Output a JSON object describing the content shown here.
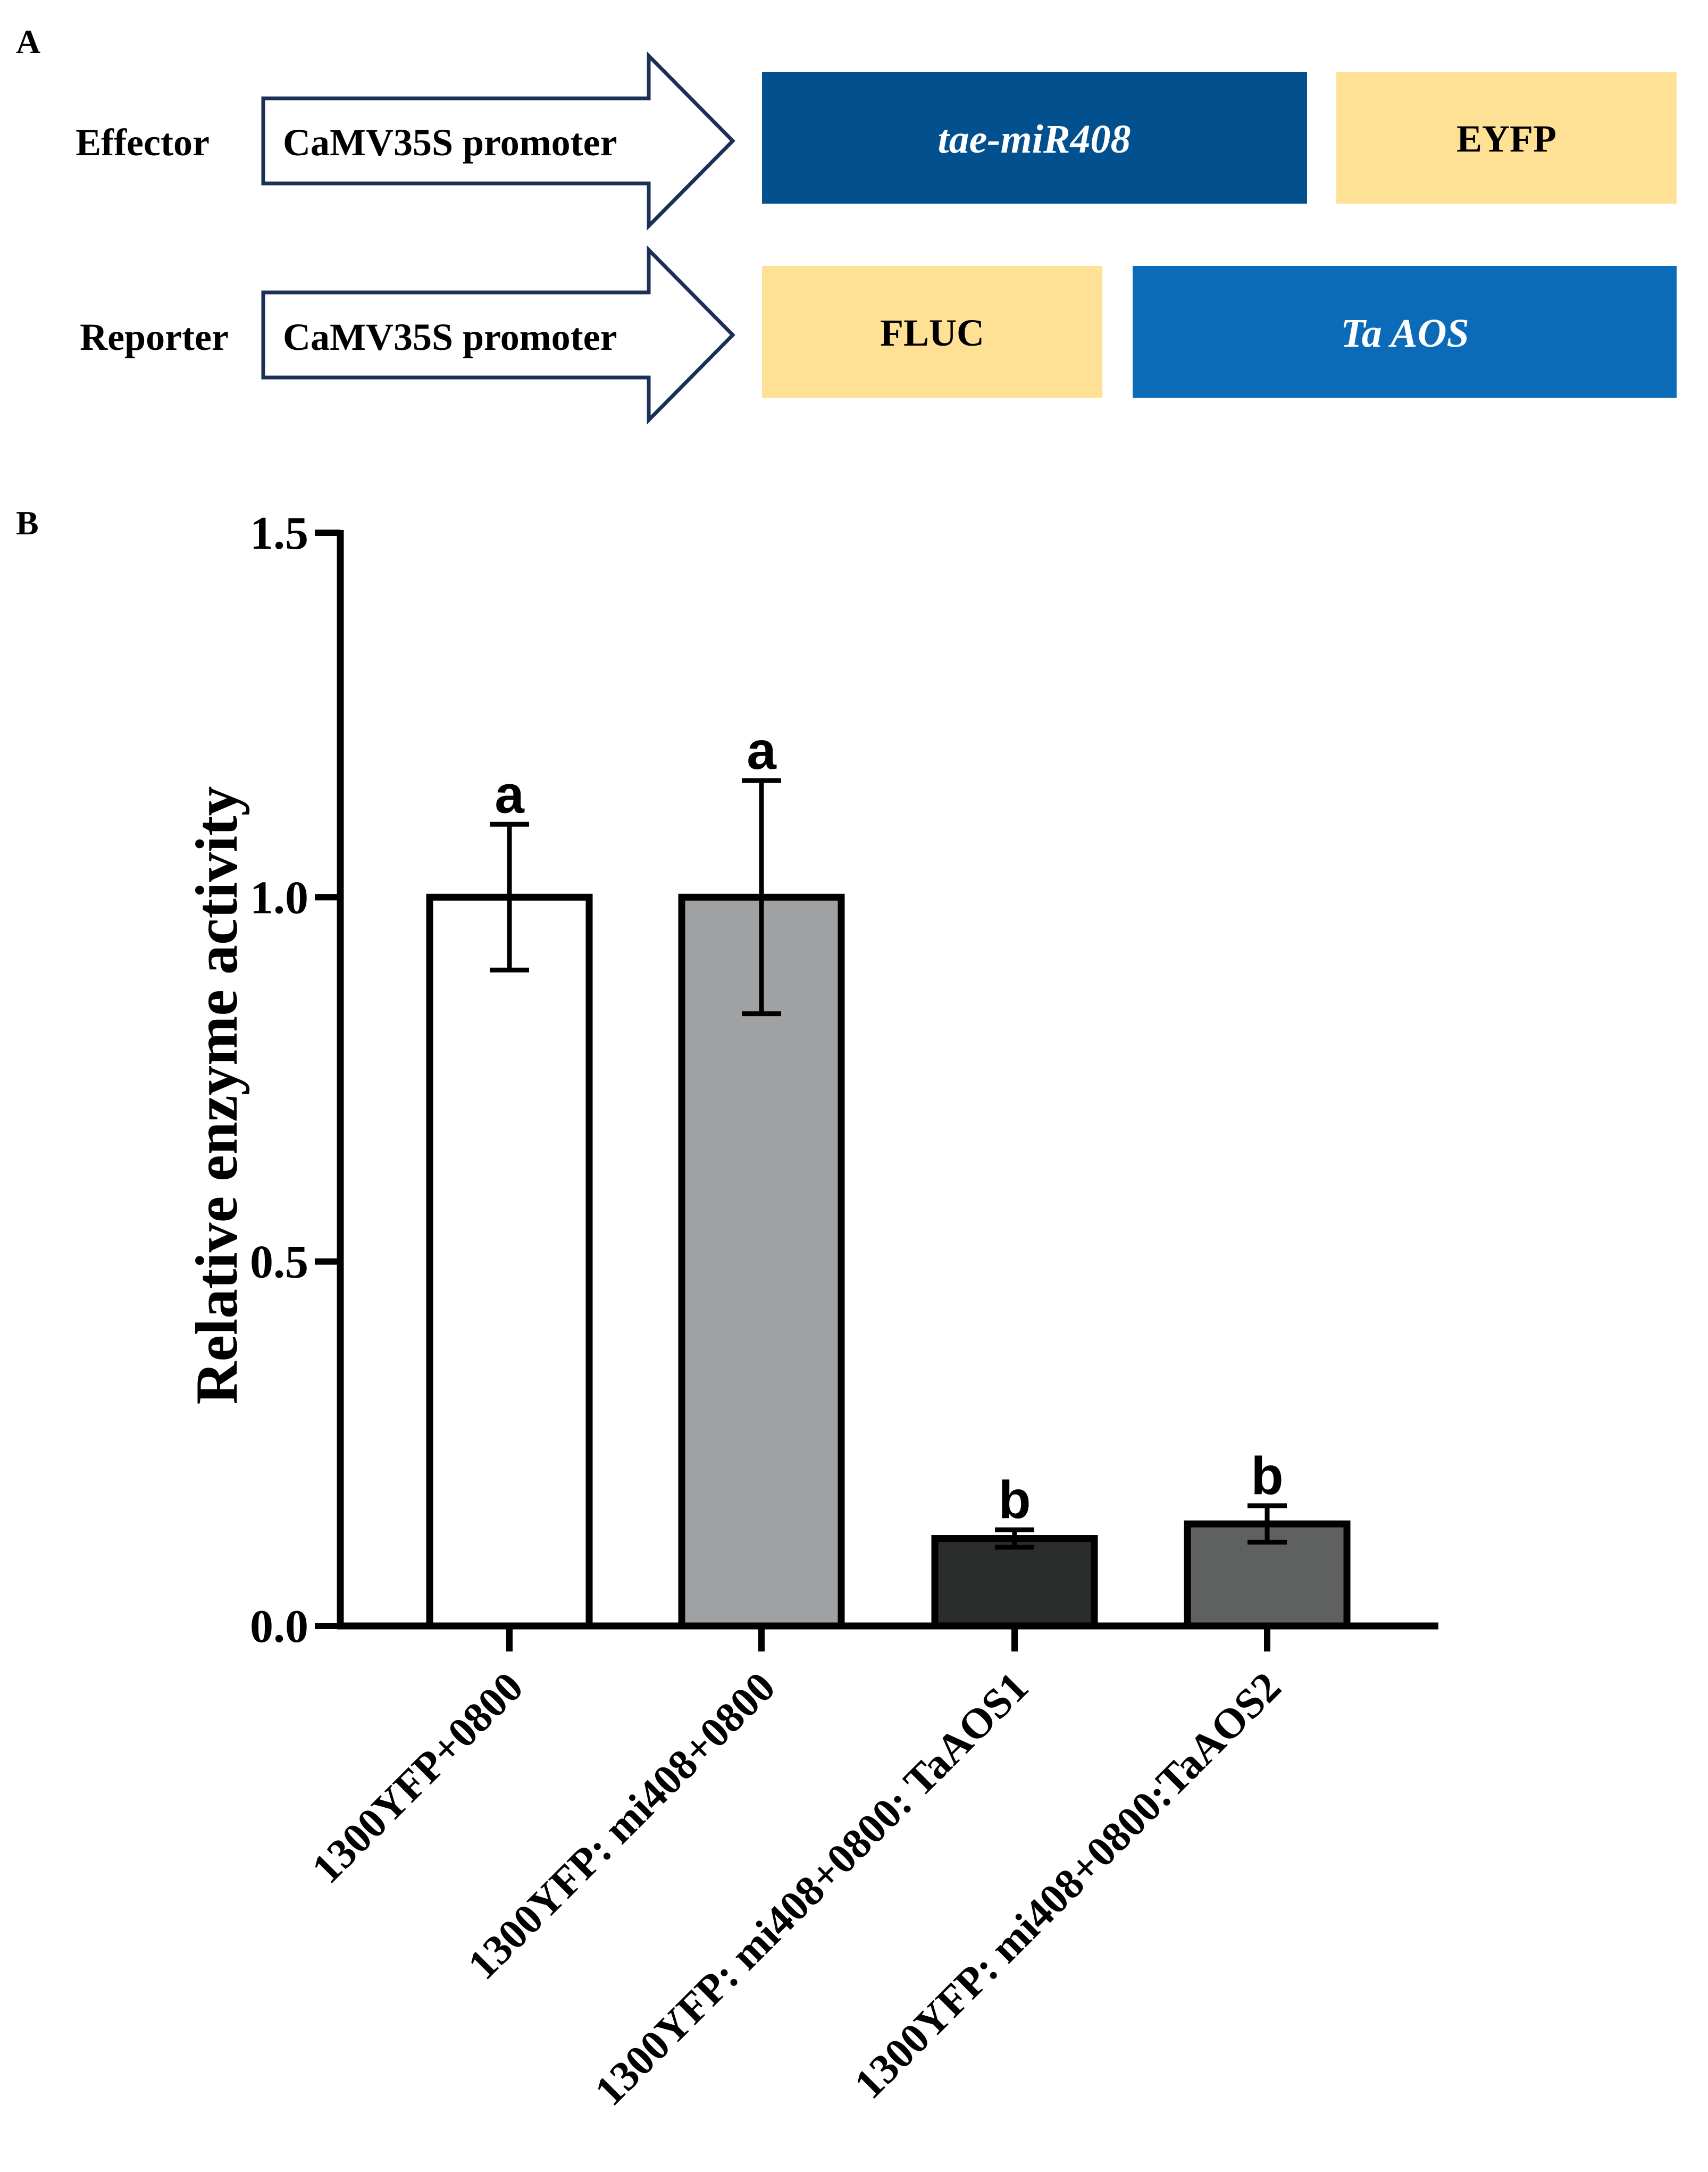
{
  "panel_a": {
    "label": "A",
    "effector": {
      "row_label": "Effector",
      "promoter": "CaMV35S promoter",
      "gene": "tae-miR408",
      "tag": "EYFP"
    },
    "reporter": {
      "row_label": "Reporter",
      "promoter": "CaMV35S promoter",
      "tag": "FLUC",
      "gene": "Ta AOS"
    },
    "colors": {
      "dark_blue": "#03508F",
      "mid_blue": "#0B6BB8",
      "yellow": "#FFE196",
      "arrow_stroke": "#1B2F57"
    }
  },
  "panel_b": {
    "label": "B"
  },
  "chart_data": {
    "type": "bar",
    "title": "",
    "xlabel": "",
    "ylabel": "Relative enzyme activity",
    "ylim": [
      0,
      1.5
    ],
    "yticks": [
      0.0,
      0.5,
      1.0,
      1.5
    ],
    "ytick_labels": [
      "0.0",
      "0.5",
      "1.0",
      "1.5"
    ],
    "categories": [
      "1300YFP+0800",
      "1300YFP: mi408+0800",
      "1300YFP: mi408+0800: TaAOS1",
      "1300YFP: mi408+0800:TaAOS2"
    ],
    "values": [
      1.0,
      1.0,
      0.12,
      0.14
    ],
    "error": [
      0.1,
      0.16,
      0.012,
      0.025
    ],
    "significance": [
      "a",
      "a",
      "b",
      "b"
    ],
    "bar_colors": [
      "#FFFFFF",
      "#A0A1A3",
      "#2B2D2D",
      "#5F6160"
    ]
  }
}
